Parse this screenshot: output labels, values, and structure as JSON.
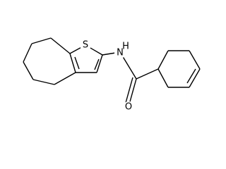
{
  "atoms": [
    {
      "label": "S"
    },
    {
      "label": "N"
    },
    {
      "label": "H"
    },
    {
      "label": "O"
    }
  ]
}
